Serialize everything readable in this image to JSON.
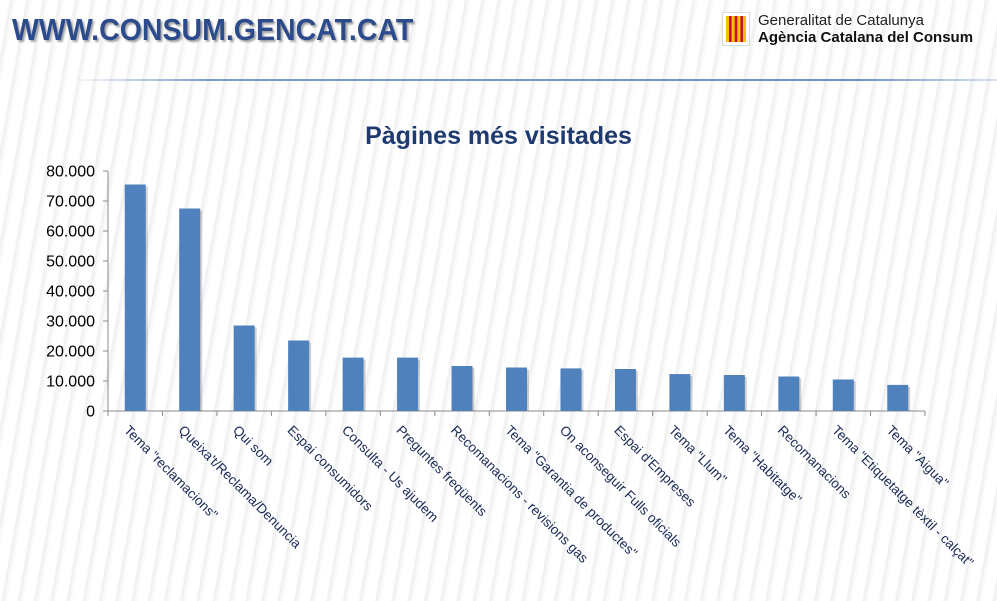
{
  "header": {
    "site_title": "WWW.CONSUM.GENCAT.CAT",
    "logo_line1": "Generalitat de Catalunya",
    "logo_line2": "Agència Catalana del Consum"
  },
  "colors": {
    "bar": "#4f81bd",
    "title": "#1f3a6e",
    "site_title": "#2b4b8c",
    "logo_red": "#c8102e",
    "logo_yellow": "#f2c200"
  },
  "chart_data": {
    "type": "bar",
    "title": "Pàgines més visitades",
    "xlabel": "",
    "ylabel": "",
    "ylim": [
      0,
      80000
    ],
    "y_tick_values": [
      0,
      10000,
      20000,
      30000,
      40000,
      50000,
      60000,
      70000,
      80000
    ],
    "y_tick_labels": [
      "0",
      "10.000",
      "20.000",
      "30.000",
      "40.000",
      "50.000",
      "60.000",
      "70.000",
      "80.000"
    ],
    "grid": false,
    "legend": "none",
    "categories": [
      "Tema \"reclamacions\"",
      "Queixa't/Reclama/Denuncia",
      "Qui som",
      "Espai consumidors",
      "Consulta - Us ajudem",
      "Preguntes freqüents",
      "Recomanacions - revisions gas",
      "Tema \"Garantia de productes\"",
      "On aconseguir Fulls oficials",
      "Espai d'Empreses",
      "Tema \"Llum\"",
      "Tema \"Habitatge\"",
      "Recomanacions",
      "Tema \"Etiquetatge tèxtil - calçat\"",
      "Tema \"Aigua\""
    ],
    "values": [
      75500,
      67500,
      28500,
      23500,
      17800,
      17800,
      15000,
      14500,
      14200,
      14000,
      12300,
      12000,
      11500,
      10500,
      8700
    ]
  }
}
